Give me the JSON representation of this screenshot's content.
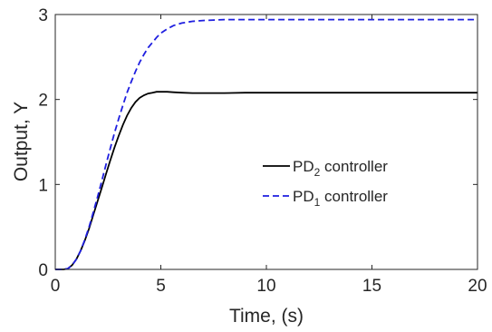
{
  "chart_data": {
    "type": "line",
    "title": "",
    "xlabel": "Time, (s)",
    "ylabel": "Output, Y",
    "xlim": [
      0,
      20
    ],
    "ylim": [
      0,
      3
    ],
    "xticks": [
      0,
      5,
      10,
      15,
      20
    ],
    "yticks": [
      0,
      1,
      2,
      3
    ],
    "grid": false,
    "legend_position": "center-right",
    "series": [
      {
        "name_base": "PD",
        "name_sub": "2",
        "name_tail": " controller",
        "color": "#000000",
        "style": "solid",
        "x": [
          0,
          0.4,
          0.6,
          0.8,
          1.0,
          1.2,
          1.4,
          1.6,
          1.8,
          2.0,
          2.2,
          2.4,
          2.6,
          2.8,
          3.0,
          3.2,
          3.4,
          3.6,
          3.8,
          4.0,
          4.2,
          4.4,
          4.6,
          4.8,
          5.0,
          5.3,
          5.6,
          6.0,
          6.5,
          7.0,
          7.5,
          8.0,
          9.0,
          10,
          12,
          14,
          16,
          18,
          20
        ],
        "y": [
          0,
          0,
          0.01,
          0.05,
          0.12,
          0.22,
          0.34,
          0.48,
          0.64,
          0.8,
          0.96,
          1.12,
          1.28,
          1.43,
          1.57,
          1.7,
          1.81,
          1.9,
          1.97,
          2.02,
          2.05,
          2.07,
          2.08,
          2.09,
          2.09,
          2.09,
          2.085,
          2.08,
          2.075,
          2.075,
          2.075,
          2.075,
          2.08,
          2.08,
          2.08,
          2.08,
          2.08,
          2.08,
          2.08
        ]
      },
      {
        "name_base": "PD",
        "name_sub": "1",
        "name_tail": " controller",
        "color": "#1f1fe0",
        "style": "dashed",
        "x": [
          0,
          0.4,
          0.6,
          0.8,
          1.0,
          1.2,
          1.4,
          1.6,
          1.8,
          2.0,
          2.2,
          2.4,
          2.6,
          2.8,
          3.0,
          3.2,
          3.4,
          3.6,
          3.8,
          4.0,
          4.2,
          4.4,
          4.6,
          4.8,
          5.0,
          5.3,
          5.6,
          6.0,
          6.5,
          7.0,
          7.5,
          8.0,
          9.0,
          10,
          12,
          14,
          16,
          18,
          20
        ],
        "y": [
          0,
          0,
          0.01,
          0.05,
          0.12,
          0.22,
          0.35,
          0.5,
          0.67,
          0.85,
          1.04,
          1.23,
          1.42,
          1.6,
          1.77,
          1.93,
          2.08,
          2.21,
          2.33,
          2.44,
          2.53,
          2.61,
          2.67,
          2.73,
          2.78,
          2.83,
          2.87,
          2.9,
          2.92,
          2.93,
          2.935,
          2.94,
          2.94,
          2.94,
          2.94,
          2.94,
          2.94,
          2.94,
          2.94
        ]
      }
    ]
  }
}
